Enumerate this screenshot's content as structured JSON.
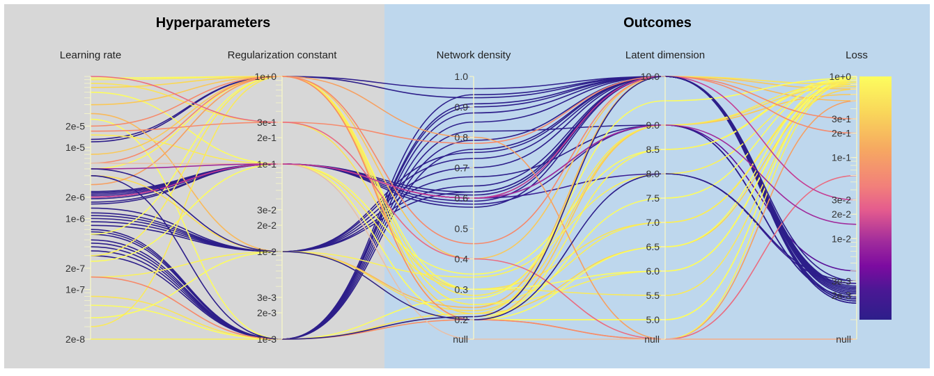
{
  "chart_data": {
    "type": "parallel_coordinates",
    "groups": [
      {
        "title": "Hyperparameters",
        "color": "#d6d6d6"
      },
      {
        "title": "Outcomes",
        "color": "#bdd6ec"
      }
    ],
    "axes": [
      {
        "title": "Learning rate",
        "scale": "log",
        "domain": [
          2e-08,
          0.0001
        ],
        "tick_labels": [
          "2e-5",
          "1e-5",
          "2e-6",
          "1e-6",
          "2e-7",
          "1e-7",
          "2e-8"
        ],
        "tick_values": [
          2e-05,
          1e-05,
          2e-06,
          1e-06,
          2e-07,
          1e-07,
          2e-08
        ],
        "has_null": false
      },
      {
        "title": "Regularization constant",
        "scale": "log",
        "domain": [
          0.001,
          1
        ],
        "tick_labels": [
          "1e+0",
          "3e-1",
          "2e-1",
          "1e-1",
          "3e-2",
          "2e-2",
          "1e-2",
          "3e-3",
          "2e-3",
          "1e-3"
        ],
        "tick_values": [
          1,
          0.3,
          0.2,
          0.1,
          0.03,
          0.02,
          0.01,
          0.003,
          0.002,
          0.001
        ],
        "has_null": false
      },
      {
        "title": "Network density",
        "scale": "linear",
        "domain": [
          0.2,
          1.0
        ],
        "tick_labels": [
          "1.0",
          "0.9",
          "0.8",
          "0.7",
          "0.6",
          "0.5",
          "0.4",
          "0.3",
          "0.2",
          "null"
        ],
        "tick_values": [
          1.0,
          0.9,
          0.8,
          0.7,
          0.6,
          0.5,
          0.4,
          0.3,
          0.2,
          null
        ],
        "has_null": true
      },
      {
        "title": "Latent dimension",
        "scale": "linear",
        "domain": [
          5.0,
          10.0
        ],
        "tick_labels": [
          "10.0",
          "9.0",
          "8.5",
          "8.0",
          "7.5",
          "7.0",
          "6.5",
          "6.0",
          "5.5",
          "5.0",
          "null"
        ],
        "tick_values": [
          10.0,
          9.0,
          8.5,
          8.0,
          7.5,
          7.0,
          6.5,
          6.0,
          5.5,
          5.0,
          null
        ],
        "has_null": true
      },
      {
        "title": "Loss",
        "scale": "log",
        "domain": [
          0.001,
          1
        ],
        "tick_labels": [
          "1e+0",
          "3e-1",
          "2e-1",
          "1e-1",
          "3e-2",
          "2e-2",
          "1e-2",
          "3e-3",
          "2e-3",
          "null"
        ],
        "tick_values": [
          1,
          0.3,
          0.2,
          0.1,
          0.03,
          0.02,
          0.01,
          0.003,
          0.002,
          null
        ],
        "has_null": true
      }
    ],
    "color_by": "Loss",
    "colorscale": [
      "#2d1e8a",
      "#6a0fa0",
      "#a02b9c",
      "#e0568a",
      "#f6896a",
      "#fbb65a",
      "#f8e14c",
      "#fdfd5e"
    ],
    "series": [
      {
        "values": [
          1.2e-05,
          1.0,
          0.93,
          10.0,
          0.0018
        ],
        "color": "#2d1e8a"
      },
      {
        "values": [
          1.3e-05,
          1.0,
          0.96,
          10.0,
          0.0022
        ],
        "color": "#2f1f8c"
      },
      {
        "values": [
          2.4e-06,
          0.1,
          0.6,
          10.0,
          0.0017
        ],
        "color": "#2d1e8a"
      },
      {
        "values": [
          2.1e-06,
          0.1,
          0.58,
          9.0,
          0.0019
        ],
        "color": "#331f90"
      },
      {
        "values": [
          1.9e-06,
          0.1,
          0.61,
          10.0,
          0.0024
        ],
        "color": "#2d1e8a"
      },
      {
        "values": [
          2.2e-06,
          0.1,
          0.6,
          8.0,
          0.0028
        ],
        "color": "#3a1e92"
      },
      {
        "values": [
          1.7e-06,
          0.1,
          0.59,
          10.0,
          0.0016
        ],
        "color": "#2d1e8a"
      },
      {
        "values": [
          1.6e-06,
          0.1,
          0.62,
          10.0,
          0.0021
        ],
        "color": "#2d1e8a"
      },
      {
        "values": [
          2e-06,
          0.1,
          0.6,
          9.0,
          0.004
        ],
        "color": "#5a1199"
      },
      {
        "values": [
          2.3e-06,
          0.1,
          0.57,
          10.0,
          0.0025
        ],
        "color": "#2d1e8a"
      },
      {
        "values": [
          1.2e-06,
          0.01,
          0.7,
          10.0,
          0.0018
        ],
        "color": "#2d1e8a"
      },
      {
        "values": [
          1e-06,
          0.01,
          0.73,
          10.0,
          0.0023
        ],
        "color": "#2d1e8a"
      },
      {
        "values": [
          9e-07,
          0.01,
          0.67,
          9.0,
          0.0019
        ],
        "color": "#2d1e8a"
      },
      {
        "values": [
          1.1e-06,
          0.01,
          0.64,
          10.0,
          0.002
        ],
        "color": "#2d1e8a"
      },
      {
        "values": [
          8e-07,
          0.01,
          0.75,
          10.0,
          0.0017
        ],
        "color": "#2d1e8a"
      },
      {
        "values": [
          1.4e-06,
          0.01,
          0.62,
          10.0,
          0.0026
        ],
        "color": "#2d1e8a"
      },
      {
        "values": [
          7e-07,
          0.001,
          0.88,
          10.0,
          0.0017
        ],
        "color": "#2d1e8a"
      },
      {
        "values": [
          6e-07,
          0.001,
          0.91,
          10.0,
          0.0018
        ],
        "color": "#2d1e8a"
      },
      {
        "values": [
          5e-07,
          0.001,
          0.85,
          10.0,
          0.002
        ],
        "color": "#2d1e8a"
      },
      {
        "values": [
          4.5e-07,
          0.001,
          0.94,
          10.0,
          0.0022
        ],
        "color": "#2d1e8a"
      },
      {
        "values": [
          4e-07,
          0.001,
          0.82,
          9.0,
          0.0019
        ],
        "color": "#2d1e8a"
      },
      {
        "values": [
          3.5e-07,
          0.001,
          0.79,
          10.0,
          0.0024
        ],
        "color": "#2d1e8a"
      },
      {
        "values": [
          3e-07,
          0.001,
          0.9,
          10.0,
          0.0016
        ],
        "color": "#2d1e8a"
      },
      {
        "values": [
          6.5e-07,
          0.001,
          0.76,
          10.0,
          0.0021
        ],
        "color": "#2d1e8a"
      },
      {
        "values": [
          9.5e-05,
          1.0,
          0.2,
          5.0,
          1.0
        ],
        "color": "#fdfd5e"
      },
      {
        "values": [
          9e-05,
          1.0,
          0.25,
          6.0,
          0.9
        ],
        "color": "#fbf25a"
      },
      {
        "values": [
          8e-05,
          0.3,
          0.3,
          7.0,
          0.8
        ],
        "color": "#fbe556"
      },
      {
        "values": [
          7e-05,
          1.0,
          0.22,
          6.5,
          0.7
        ],
        "color": "#fbd852"
      },
      {
        "values": [
          6e-05,
          0.1,
          0.35,
          8.5,
          0.95
        ],
        "color": "#fdfd5e"
      },
      {
        "values": [
          4e-05,
          1.0,
          0.2,
          9.0,
          0.6
        ],
        "color": "#fbc855"
      },
      {
        "values": [
          3e-05,
          0.01,
          0.24,
          10.0,
          0.5
        ],
        "color": "#f9b95a"
      },
      {
        "values": [
          2.5e-05,
          0.001,
          0.21,
          7.5,
          1.0
        ],
        "color": "#fdfd5e"
      },
      {
        "values": [
          1.5e-05,
          0.1,
          0.3,
          5.5,
          0.85
        ],
        "color": "#fbea58"
      },
      {
        "values": [
          8e-06,
          1.0,
          0.4,
          10.0,
          0.7
        ],
        "color": "#f9c95a"
      },
      {
        "values": [
          5e-06,
          1.0,
          0.2,
          8.5,
          0.9
        ],
        "color": "#fdf65c"
      },
      {
        "values": [
          4e-06,
          0.01,
          0.23,
          9.0,
          0.75
        ],
        "color": "#fbdd55"
      },
      {
        "values": [
          3e-06,
          1.0,
          0.8,
          null,
          0.5
        ],
        "color": "#f6a061"
      },
      {
        "values": [
          6e-07,
          1.0,
          0.3,
          6.0,
          0.95
        ],
        "color": "#fdfd5e"
      },
      {
        "values": [
          3e-07,
          1.0,
          0.25,
          7.0,
          0.85
        ],
        "color": "#fbef58"
      },
      {
        "values": [
          2.5e-07,
          0.1,
          0.2,
          5.0,
          1.0
        ],
        "color": "#fdfd5e"
      },
      {
        "values": [
          1.5e-07,
          0.01,
          0.34,
          8.0,
          0.9
        ],
        "color": "#fbf25a"
      },
      {
        "values": [
          8e-08,
          0.001,
          0.22,
          10.0,
          0.8
        ],
        "color": "#fbe556"
      },
      {
        "values": [
          6e-08,
          0.001,
          0.27,
          9.5,
          0.95
        ],
        "color": "#fdfd5e"
      },
      {
        "values": [
          4e-08,
          0.01,
          0.2,
          6.5,
          1.0
        ],
        "color": "#fdfd5e"
      },
      {
        "values": [
          2e-08,
          0.001,
          0.2,
          null,
          0.9
        ],
        "color": "#fbf25a"
      },
      {
        "values": [
          3e-08,
          1.0,
          0.28,
          9.0,
          0.85
        ],
        "color": "#fbea58"
      },
      {
        "values": [
          1.5e-07,
          0.001,
          0.2,
          null,
          null
        ],
        "color": "#f6896a"
      },
      {
        "values": [
          6e-06,
          1.0,
          0.2,
          null,
          null
        ],
        "color": "#f6896a"
      },
      {
        "values": [
          2e-05,
          1.0,
          0.45,
          10.0,
          0.3
        ],
        "color": "#f6896a"
      },
      {
        "values": [
          1.7e-05,
          0.3,
          0.78,
          10.0,
          0.2
        ],
        "color": "#f68a6c"
      },
      {
        "values": [
          0.0001,
          0.3,
          0.4,
          null,
          0.06
        ],
        "color": "#ea6c80"
      },
      {
        "values": [
          6e-06,
          0.1,
          null,
          null,
          null
        ],
        "color": "#e8c0a8"
      },
      {
        "values": [
          5e-06,
          0.1,
          0.6,
          9.0,
          0.015
        ],
        "color": "#a02b9c"
      },
      {
        "values": [
          2e-06,
          0.1,
          0.6,
          10.0,
          0.03
        ],
        "color": "#c63c92"
      },
      {
        "values": [
          5e-06,
          0.01,
          0.2,
          8.0,
          0.003
        ],
        "color": "#2d1e8a"
      },
      {
        "values": [
          4e-06,
          0.001,
          0.21,
          10.0,
          0.003
        ],
        "color": "#2d1e8a"
      }
    ]
  }
}
